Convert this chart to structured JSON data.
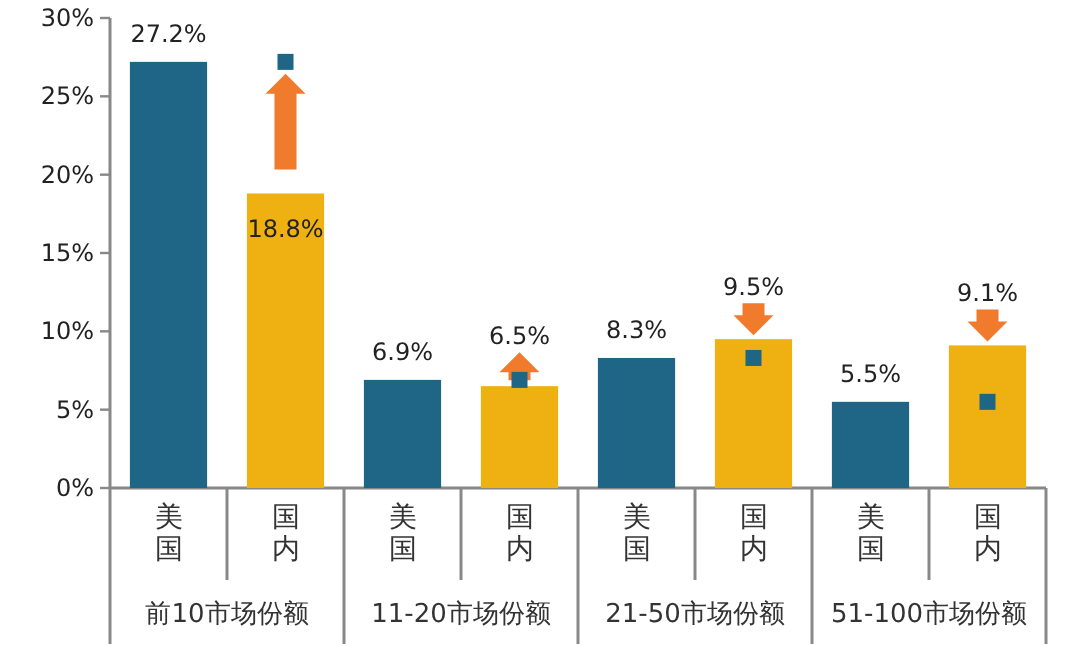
{
  "chart_data": {
    "type": "bar",
    "categories": [
      "美国",
      "国内",
      "美国",
      "国内",
      "美国",
      "国内",
      "美国",
      "国内"
    ],
    "ylim": [
      0,
      30
    ],
    "yticks": [
      {
        "value": 0,
        "label": "0%"
      },
      {
        "value": 5,
        "label": "5%"
      },
      {
        "value": 10,
        "label": "10%"
      },
      {
        "value": 15,
        "label": "15%"
      },
      {
        "value": 20,
        "label": "20%"
      },
      {
        "value": 25,
        "label": "25%"
      },
      {
        "value": 30,
        "label": "30%"
      }
    ],
    "series": [
      {
        "type": "bar",
        "values": [
          27.2,
          18.8,
          6.9,
          6.5,
          8.3,
          9.5,
          5.5,
          9.1
        ],
        "colors": [
          "#1f6586",
          "#eeb111",
          "#1f6586",
          "#eeb111",
          "#1f6586",
          "#eeb111",
          "#1f6586",
          "#eeb111"
        ],
        "value_labels": [
          "27.2%",
          "18.8%",
          "6.9%",
          "6.5%",
          "8.3%",
          "9.5%",
          "5.5%",
          "9.1%"
        ]
      },
      {
        "type": "scatter",
        "marker": "square",
        "color": "#1f6586",
        "values": [
          null,
          27.2,
          null,
          6.9,
          null,
          8.3,
          null,
          5.5
        ]
      }
    ],
    "annotations": [
      "前10市场份额",
      "11-20市场份额",
      "21-50市场份额",
      "51-100市场份额"
    ]
  }
}
